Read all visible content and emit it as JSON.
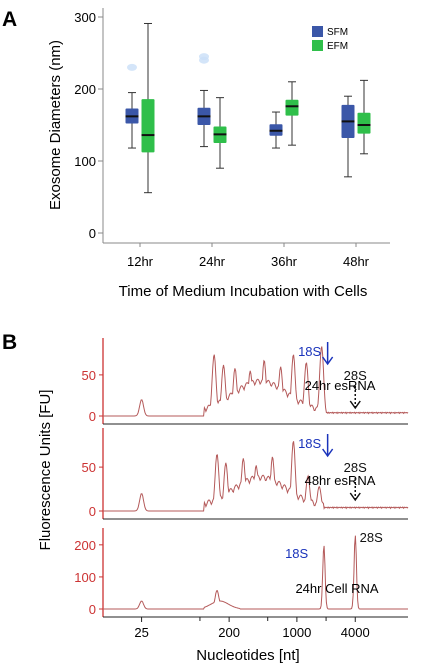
{
  "chart_data": [
    {
      "panel": "A",
      "type": "box",
      "ylabel": "Exosome Diameters (nm)",
      "xlabel": "Time of Medium Incubation with Cells",
      "ylim": [
        0,
        300
      ],
      "yticks": [
        0,
        100,
        200,
        300
      ],
      "categories": [
        "12hr",
        "24hr",
        "36hr",
        "48hr"
      ],
      "legend_position": "top-right",
      "series": [
        {
          "name": "SFM",
          "color": "#3b57a8",
          "boxes": [
            {
              "min": 118,
              "q1": 152,
              "median": 162,
              "q3": 173,
              "max": 195,
              "outliers": [
                230
              ]
            },
            {
              "min": 120,
              "q1": 150,
              "median": 162,
              "q3": 174,
              "max": 198,
              "outliers": [
                245,
                240
              ]
            },
            {
              "min": 118,
              "q1": 135,
              "median": 142,
              "q3": 151,
              "max": 168,
              "outliers": []
            },
            {
              "min": 78,
              "q1": 132,
              "median": 155,
              "q3": 178,
              "max": 190,
              "outliers": []
            }
          ]
        },
        {
          "name": "EFM",
          "color": "#2fbf4a",
          "boxes": [
            {
              "min": 56,
              "q1": 112,
              "median": 136,
              "q3": 186,
              "max": 291,
              "outliers": []
            },
            {
              "min": 90,
              "q1": 125,
              "median": 137,
              "q3": 148,
              "max": 188,
              "outliers": []
            },
            {
              "min": 122,
              "q1": 163,
              "median": 176,
              "q3": 185,
              "max": 210,
              "outliers": []
            },
            {
              "min": 110,
              "q1": 138,
              "median": 150,
              "q3": 167,
              "max": 212,
              "outliers": []
            }
          ]
        }
      ]
    },
    {
      "panel": "B",
      "type": "line",
      "ylabel": "Fluorescence Units  [FU]",
      "xlabel": "Nucleotides [nt]",
      "xscale": "log",
      "xtick_labels": [
        "25",
        "200",
        "1000",
        "4000"
      ],
      "xtick_values": [
        25,
        200,
        1000,
        4000
      ],
      "minor_ticks": [
        100,
        500,
        2000
      ],
      "axis_color": "#cc3333",
      "trace_color": "#b45a5a",
      "panels": [
        {
          "label": "24hr esRNA",
          "ylim": [
            0,
            90
          ],
          "yticks": [
            0,
            50
          ],
          "annotations": [
            {
              "text": "18S",
              "color": "#1a33bb",
              "arrow": "solid",
              "x": 1800
            },
            {
              "text": "28S",
              "color": "#111111",
              "arrow": "dashed",
              "x": 4000
            }
          ],
          "peaks": [
            {
              "x": 25,
              "y": 20
            },
            {
              "x": 140,
              "y": 75
            },
            {
              "x": 175,
              "y": 62
            },
            {
              "x": 230,
              "y": 58
            },
            {
              "x": 330,
              "y": 55
            },
            {
              "x": 460,
              "y": 68
            },
            {
              "x": 680,
              "y": 60
            },
            {
              "x": 920,
              "y": 75
            },
            {
              "x": 1250,
              "y": 65
            },
            {
              "x": 1800,
              "y": 85
            }
          ]
        },
        {
          "label": "48hr esRNA",
          "ylim": [
            0,
            90
          ],
          "yticks": [
            0,
            50
          ],
          "annotations": [
            {
              "text": "18S",
              "color": "#1a33bb",
              "arrow": "solid",
              "x": 1800
            },
            {
              "text": "28S",
              "color": "#111111",
              "arrow": "dashed",
              "x": 4000
            }
          ],
          "peaks": [
            {
              "x": 25,
              "y": 20
            },
            {
              "x": 150,
              "y": 65
            },
            {
              "x": 185,
              "y": 55
            },
            {
              "x": 280,
              "y": 60
            },
            {
              "x": 380,
              "y": 52
            },
            {
              "x": 560,
              "y": 62
            },
            {
              "x": 920,
              "y": 80
            },
            {
              "x": 1300,
              "y": 40
            },
            {
              "x": 1700,
              "y": 28
            }
          ]
        },
        {
          "label": "24hr Cell RNA",
          "ylim": [
            0,
            240
          ],
          "yticks": [
            0,
            100,
            200
          ],
          "annotations": [
            {
              "text": "18S",
              "color": "#1a33bb",
              "arrow": "none",
              "x": 1800
            },
            {
              "text": "28S",
              "color": "#111111",
              "arrow": "none",
              "x": 4000
            }
          ],
          "peaks": [
            {
              "x": 25,
              "y": 25
            },
            {
              "x": 150,
              "y": 58
            },
            {
              "x": 1900,
              "y": 200
            },
            {
              "x": 4000,
              "y": 230
            }
          ]
        }
      ]
    }
  ],
  "labels": {
    "panel_a": "A",
    "panel_b": "B"
  }
}
